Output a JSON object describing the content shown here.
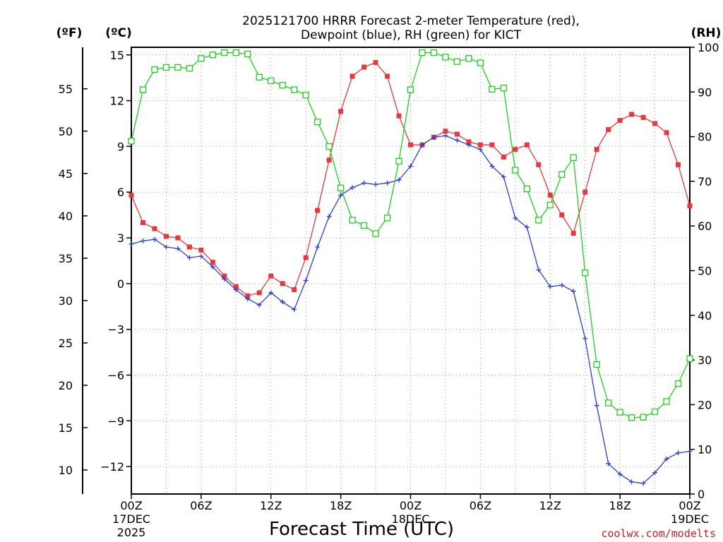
{
  "chart_data": {
    "type": "line",
    "title_line1": "2025121700 HRRR Forecast 2-meter Temperature (red),",
    "title_line2": "Dewpoint (blue), RH (green) for KICT",
    "xlabel": "Forecast Time (UTC)",
    "credit": "coolwx.com/modelts",
    "units": {
      "fahrenheit": "(ºF)",
      "celsius": "(ºC)",
      "rh": "(RH)"
    },
    "x": [
      0,
      1,
      2,
      3,
      4,
      5,
      6,
      7,
      8,
      9,
      10,
      11,
      12,
      13,
      14,
      15,
      16,
      17,
      18,
      19,
      20,
      21,
      22,
      23,
      24,
      25,
      26,
      27,
      28,
      29,
      30,
      31,
      32,
      33,
      34,
      35,
      36,
      37,
      38,
      39,
      40,
      41,
      42,
      43,
      44,
      45,
      46,
      47,
      48
    ],
    "x_ticks": [
      {
        "hour": 0,
        "label": "00Z",
        "sub1": "17DEC",
        "sub2": "2025"
      },
      {
        "hour": 6,
        "label": "06Z",
        "sub1": "",
        "sub2": ""
      },
      {
        "hour": 12,
        "label": "12Z",
        "sub1": "",
        "sub2": ""
      },
      {
        "hour": 18,
        "label": "18Z",
        "sub1": "",
        "sub2": ""
      },
      {
        "hour": 24,
        "label": "00Z",
        "sub1": "18DEC",
        "sub2": ""
      },
      {
        "hour": 30,
        "label": "06Z",
        "sub1": "",
        "sub2": ""
      },
      {
        "hour": 36,
        "label": "12Z",
        "sub1": "",
        "sub2": ""
      },
      {
        "hour": 42,
        "label": "18Z",
        "sub1": "",
        "sub2": ""
      },
      {
        "hour": 48,
        "label": "00Z",
        "sub1": "19DEC",
        "sub2": ""
      }
    ],
    "xlim": [
      0,
      48
    ],
    "ylim_celsius": [
      -13.8,
      15.5
    ],
    "ylim_rh": [
      0,
      100
    ],
    "celsius_ticks": [
      15,
      12,
      9,
      6,
      3,
      0,
      -3,
      -6,
      -9,
      -12
    ],
    "fahrenheit_ticks": [
      55,
      50,
      45,
      40,
      35,
      30,
      25,
      20,
      15,
      10
    ],
    "rh_ticks": [
      100,
      90,
      80,
      70,
      60,
      50,
      40,
      30,
      20,
      10,
      0
    ],
    "grid": true,
    "series": [
      {
        "name": "Temperature",
        "color": "#e8383d",
        "marker": "filled-square",
        "axis": "celsius",
        "values": [
          5.8,
          4.0,
          3.6,
          3.1,
          3.0,
          2.4,
          2.2,
          1.4,
          0.5,
          -0.2,
          -0.8,
          -0.6,
          0.5,
          0.0,
          -0.4,
          1.7,
          4.8,
          8.1,
          11.3,
          13.6,
          14.2,
          14.5,
          13.6,
          11.0,
          9.1,
          9.1,
          9.6,
          10.0,
          9.8,
          9.3,
          9.1,
          9.1,
          8.3,
          8.8,
          9.1,
          7.8,
          5.8,
          4.5,
          3.3,
          6.0,
          8.8,
          10.1,
          10.7,
          11.1,
          10.9,
          10.5,
          9.9,
          7.8,
          5.1
        ]
      },
      {
        "name": "Dewpoint",
        "color": "#2a3fd6",
        "marker": "plus",
        "axis": "celsius",
        "values": [
          2.6,
          2.8,
          2.9,
          2.4,
          2.3,
          1.7,
          1.8,
          1.1,
          0.3,
          -0.4,
          -1.0,
          -1.4,
          -0.6,
          -1.2,
          -1.7,
          0.2,
          2.4,
          4.4,
          5.8,
          6.3,
          6.6,
          6.5,
          6.6,
          6.8,
          7.7,
          9.1,
          9.6,
          9.7,
          9.4,
          9.1,
          8.8,
          7.7,
          7.0,
          4.3,
          3.7,
          0.9,
          -0.2,
          -0.1,
          -0.5,
          -3.6,
          -8.0,
          -11.8,
          -12.5,
          -13.0,
          -13.1,
          -12.4,
          -11.5,
          -11.1,
          -11.0
        ]
      },
      {
        "name": "RH",
        "color": "#22cc22",
        "marker": "open-square",
        "axis": "rh",
        "values": [
          79,
          90.5,
          95,
          95.5,
          95.5,
          95.3,
          97.5,
          98.3,
          98.8,
          98.8,
          98.5,
          93.3,
          92.5,
          91.5,
          90.5,
          89.3,
          83.3,
          77.8,
          68.5,
          61.3,
          60.1,
          58.3,
          61.8,
          74.5,
          90.5,
          98.8,
          98.8,
          97.8,
          96.8,
          97.5,
          96.5,
          90.6,
          90.9,
          72.5,
          68.3,
          61.3,
          64.7,
          71.5,
          75.3,
          49.5,
          29.0,
          20.4,
          18.3,
          17.1,
          17.2,
          18.4,
          20.7,
          24.7,
          30.3
        ]
      }
    ]
  }
}
